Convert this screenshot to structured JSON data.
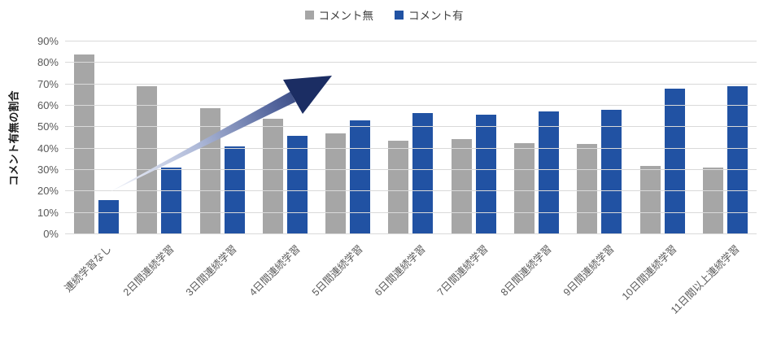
{
  "legend": [
    {
      "key": "comment-none",
      "label": "コメント無",
      "color": "#A6A6A6"
    },
    {
      "key": "comment-yes",
      "label": "コメント有",
      "color": "#2152A3"
    }
  ],
  "chart_data": {
    "type": "bar",
    "title": "",
    "ylabel": "コメント有無の割合",
    "xlabel": "",
    "categories": [
      "連続学習なし",
      "2日間連続学習",
      "3日間連続学習",
      "4日間連続学習",
      "5日間連続学習",
      "6日間連続学習",
      "7日間連続学習",
      "8日間連続学習",
      "9日間連続学習",
      "10日間連続学習",
      "11日間以上連続学習"
    ],
    "series": [
      {
        "name": "コメント無",
        "key": "comment-none",
        "color": "#A6A6A6",
        "values": [
          84,
          69,
          59,
          54,
          47,
          43.5,
          44.5,
          42.5,
          42,
          32,
          31
        ]
      },
      {
        "name": "コメント有",
        "key": "comment-yes",
        "color": "#2152A3",
        "values": [
          16,
          31,
          41,
          46,
          53,
          56.5,
          56,
          57.5,
          58,
          68,
          69
        ]
      }
    ],
    "ylim": [
      0,
      90
    ],
    "ytick_step": 10,
    "yticks": [
      "0%",
      "10%",
      "20%",
      "30%",
      "40%",
      "50%",
      "60%",
      "70%",
      "80%",
      "90%"
    ],
    "grid": true,
    "legend_position": "top-center",
    "annotation": {
      "type": "trend-arrow",
      "direction": "up-right",
      "gradient_start_color": "#F4F6FB",
      "gradient_end_color": "#1B2D63"
    },
    "gridline_color": "#D9D9D9",
    "tick_label_color": "#595959"
  }
}
